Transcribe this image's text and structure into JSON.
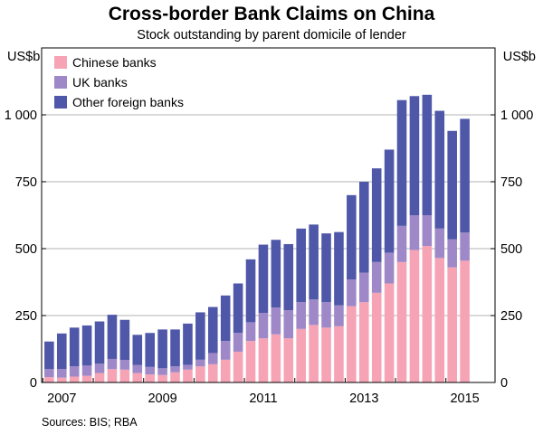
{
  "chart_data": {
    "type": "bar",
    "stacked": true,
    "title": "Cross-border Bank Claims on China",
    "subtitle": "Stock outstanding by parent domicile of lender",
    "unit_left": "US$b",
    "unit_right": "US$b",
    "source": "Sources:   BIS; RBA",
    "ylim": [
      0,
      1250
    ],
    "yticks": [
      0,
      250,
      500,
      750,
      1000
    ],
    "ytick_labels": [
      "0",
      "250",
      "500",
      "750",
      "1 000"
    ],
    "xlim": [
      2006.6,
      2015.6
    ],
    "xtick_labels": [
      "2007",
      "2009",
      "2011",
      "2013",
      "2015"
    ],
    "xtick_positions": [
      2007,
      2009,
      2011,
      2013,
      2015
    ],
    "grid": true,
    "legend": "top-left",
    "x": [
      2006.75,
      2007.0,
      2007.25,
      2007.5,
      2007.75,
      2008.0,
      2008.25,
      2008.5,
      2008.75,
      2009.0,
      2009.25,
      2009.5,
      2009.75,
      2010.0,
      2010.25,
      2010.5,
      2010.75,
      2011.0,
      2011.25,
      2011.5,
      2011.75,
      2012.0,
      2012.25,
      2012.5,
      2012.75,
      2013.0,
      2013.25,
      2013.5,
      2013.75,
      2014.0,
      2014.25,
      2014.5,
      2014.75,
      2015.0
    ],
    "series": [
      {
        "name": "Chinese banks",
        "color": "#f6a3b5",
        "values": [
          20,
          18,
          22,
          25,
          35,
          50,
          48,
          35,
          30,
          28,
          38,
          48,
          60,
          68,
          85,
          115,
          155,
          165,
          180,
          165,
          200,
          215,
          205,
          210,
          285,
          300,
          335,
          370,
          450,
          495,
          510,
          465,
          430,
          455
        ]
      },
      {
        "name": "UK banks",
        "color": "#9f88c8",
        "values": [
          30,
          32,
          38,
          38,
          35,
          38,
          36,
          30,
          28,
          25,
          22,
          18,
          25,
          42,
          70,
          70,
          70,
          95,
          100,
          105,
          100,
          95,
          95,
          78,
          100,
          110,
          115,
          115,
          135,
          130,
          115,
          110,
          105,
          105
        ]
      },
      {
        "name": "Other foreign banks",
        "color": "#4f57a8",
        "values": [
          103,
          133,
          145,
          150,
          158,
          165,
          150,
          113,
          127,
          145,
          138,
          154,
          177,
          172,
          170,
          185,
          235,
          255,
          253,
          247,
          275,
          280,
          257,
          274,
          315,
          340,
          350,
          385,
          470,
          445,
          450,
          440,
          405,
          425
        ]
      }
    ]
  }
}
